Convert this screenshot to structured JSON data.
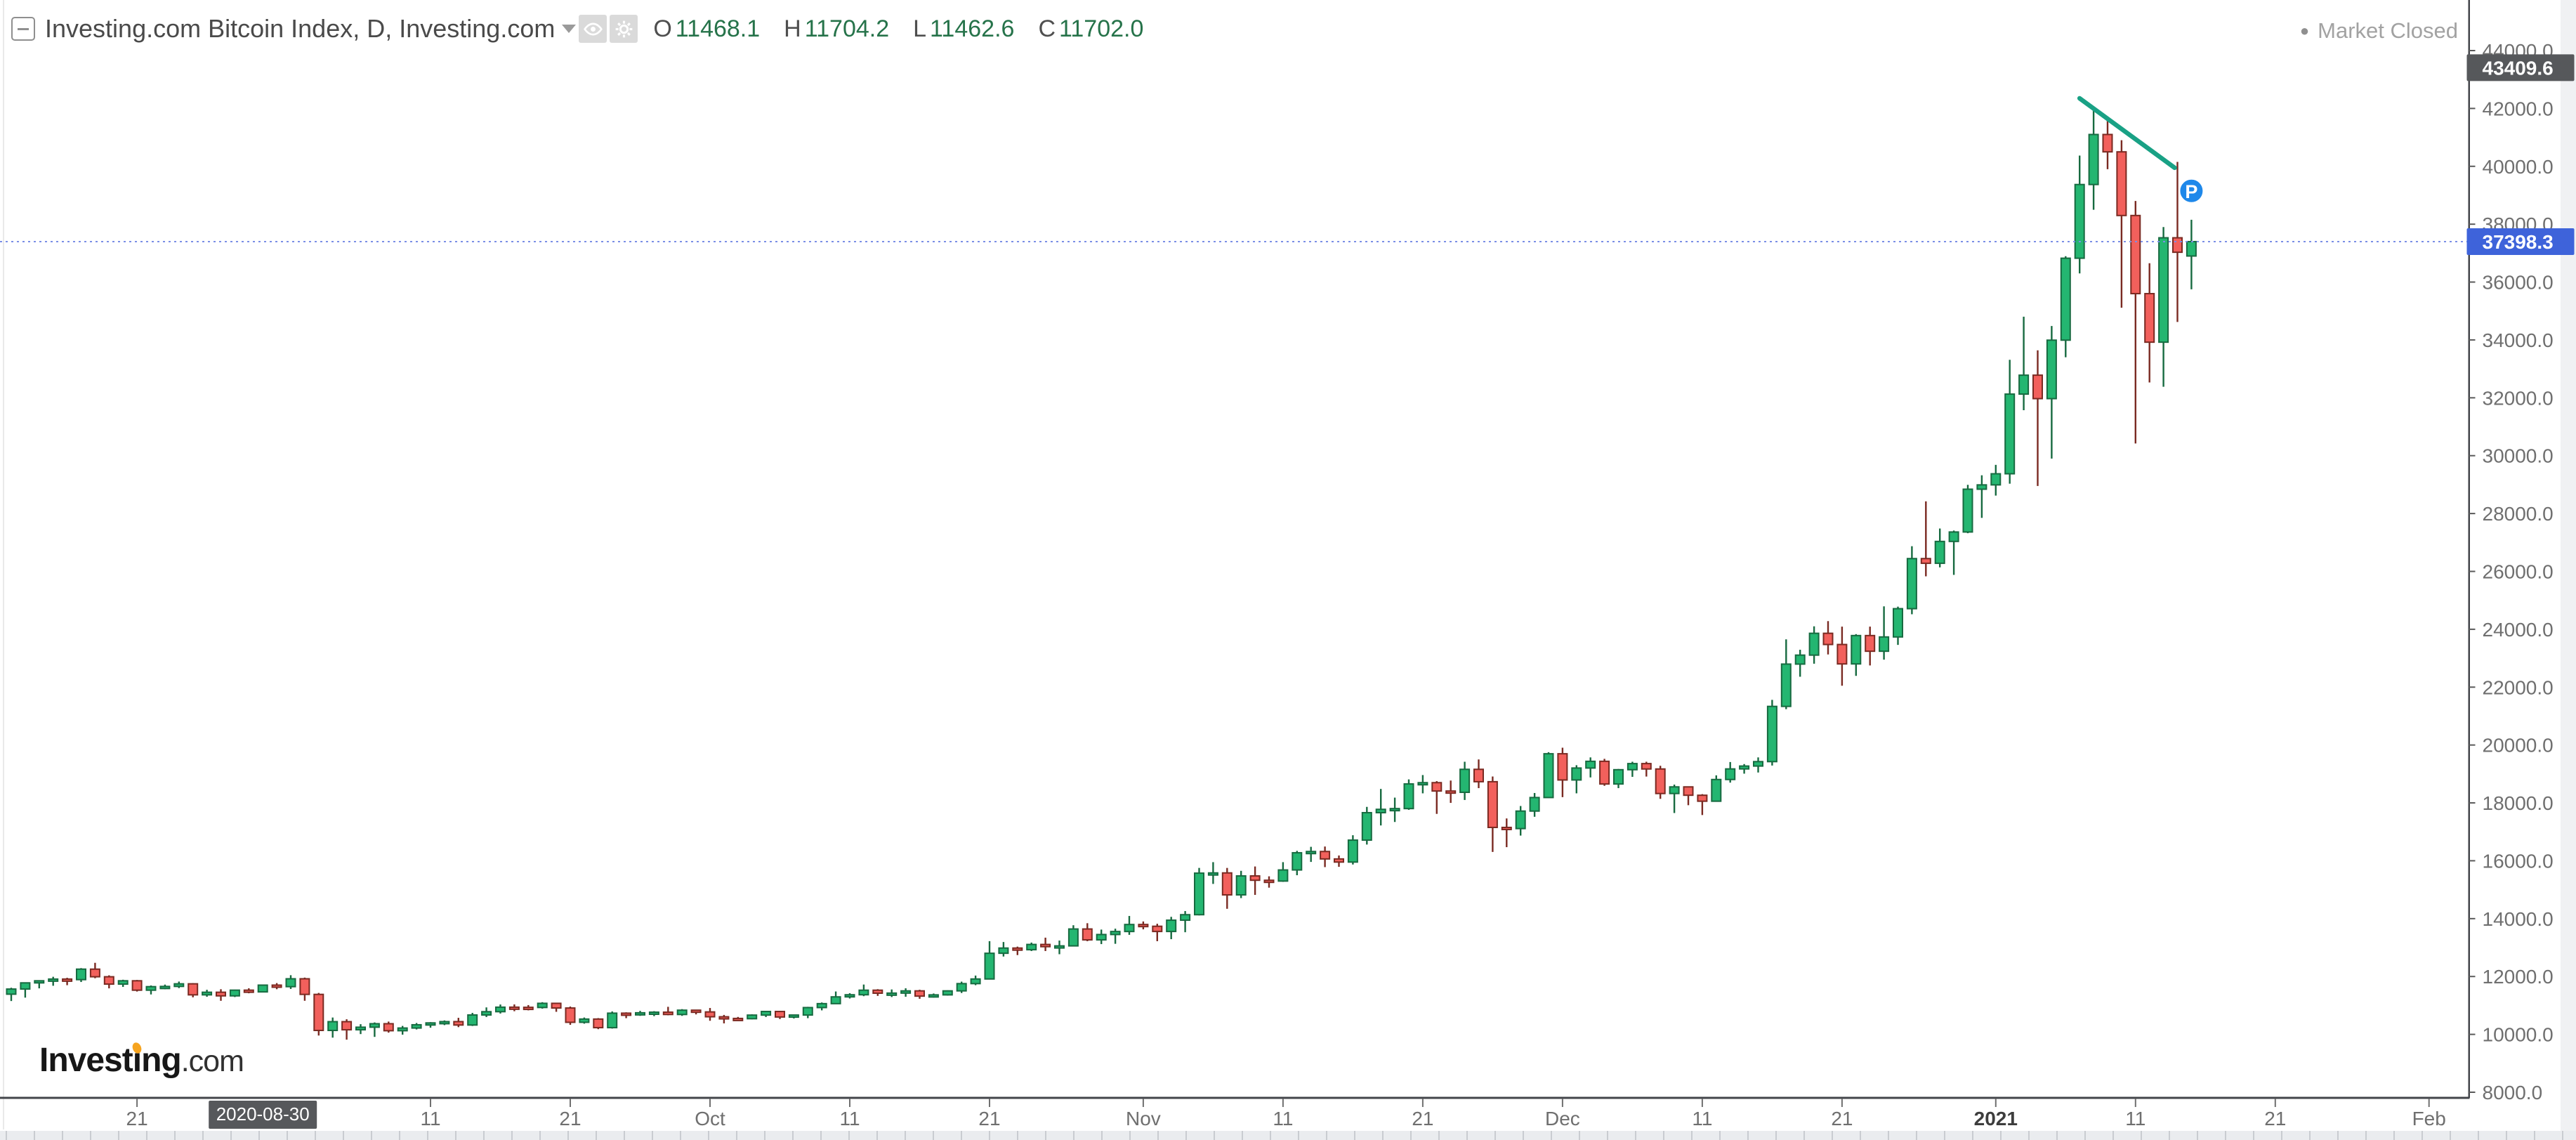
{
  "legend": {
    "title": "Investing.com Bitcoin Index, D, Investing.com",
    "ohlc": [
      {
        "label": "O",
        "value": "11468.1"
      },
      {
        "label": "H",
        "value": "11704.2"
      },
      {
        "label": "L",
        "value": "11462.6"
      },
      {
        "label": "C",
        "value": "11702.0"
      }
    ]
  },
  "status": {
    "dot": "●",
    "text": "Market Closed"
  },
  "watermark": {
    "part1": "Invest",
    "dotless_i": "ı",
    "part2": "ng",
    "suffix": ".com"
  },
  "price_axis": {
    "min": 8000,
    "max": 44000,
    "step": 2000,
    "decimals": 1,
    "label_color": "#6f6f6f",
    "high_badge": {
      "text": "43409.6",
      "value": 43409.6,
      "bg": "#56585b",
      "fg": "#ffffff"
    },
    "last_badge": {
      "text": "37398.3",
      "value": 37398.3,
      "bg": "#3e63da",
      "fg": "#ffffff"
    }
  },
  "time_axis": {
    "label_color": "#6f6f6f",
    "ticks": [
      {
        "label": "21",
        "day": 9
      },
      {
        "label": "11",
        "day": 30
      },
      {
        "label": "21",
        "day": 40
      },
      {
        "label": "Oct",
        "day": 50
      },
      {
        "label": "11",
        "day": 60
      },
      {
        "label": "21",
        "day": 70
      },
      {
        "label": "Nov",
        "day": 81
      },
      {
        "label": "11",
        "day": 91
      },
      {
        "label": "21",
        "day": 101
      },
      {
        "label": "Dec",
        "day": 111
      },
      {
        "label": "11",
        "day": 121
      },
      {
        "label": "21",
        "day": 131
      },
      {
        "label": "2021",
        "day": 142,
        "bold": true
      },
      {
        "label": "11",
        "day": 152
      },
      {
        "label": "21",
        "day": 162
      },
      {
        "label": "Feb",
        "day": 173
      }
    ],
    "crosshair_badge": {
      "text": "2020-08-30",
      "day": 18,
      "bg": "#56585b",
      "fg": "#ffffff"
    }
  },
  "chart_data": {
    "type": "candlestick",
    "title": "Investing.com Bitcoin Index",
    "interval": "D",
    "start_date": "2020-08-12",
    "ylim": [
      8000,
      44400
    ],
    "grid": false,
    "last_price": 37398.3,
    "colors": {
      "up": "#24b671",
      "up_border": "#176a40",
      "down": "#f2605c",
      "down_border": "#7a2a22",
      "trendline": "#19a185",
      "last_price_line": "#7b8fe6",
      "marker": "#1e88ea"
    },
    "trendline": {
      "from_day": 148,
      "from_price": 42350,
      "to_day": 154.8,
      "to_price": 39950
    },
    "marker": {
      "label": "P",
      "day": 156,
      "price": 39150
    },
    "candles": [
      [
        "2020-08-12",
        11389,
        11611,
        11152,
        11566
      ],
      [
        "2020-08-13",
        11566,
        11796,
        11270,
        11780
      ],
      [
        "2020-08-14",
        11780,
        11868,
        11590,
        11852
      ],
      [
        "2020-08-15",
        11852,
        11990,
        11680,
        11911
      ],
      [
        "2020-08-16",
        11911,
        11955,
        11700,
        11892
      ],
      [
        "2020-08-17",
        11892,
        12290,
        11810,
        12254
      ],
      [
        "2020-08-18",
        12254,
        12473,
        11940,
        11991
      ],
      [
        "2020-08-19",
        11991,
        12040,
        11590,
        11737
      ],
      [
        "2020-08-20",
        11737,
        11888,
        11640,
        11852
      ],
      [
        "2020-08-21",
        11852,
        11880,
        11480,
        11527
      ],
      [
        "2020-08-22",
        11527,
        11690,
        11380,
        11649
      ],
      [
        "2020-08-23",
        11649,
        11720,
        11560,
        11657
      ],
      [
        "2020-08-24",
        11657,
        11825,
        11600,
        11747
      ],
      [
        "2020-08-25",
        11747,
        11770,
        11280,
        11366
      ],
      [
        "2020-08-26",
        11366,
        11540,
        11300,
        11456
      ],
      [
        "2020-08-27",
        11456,
        11560,
        11160,
        11331
      ],
      [
        "2020-08-28",
        11331,
        11545,
        11290,
        11528
      ],
      [
        "2020-08-29",
        11528,
        11592,
        11420,
        11465
      ],
      [
        "2020-08-30",
        11468.1,
        11704.2,
        11462.6,
        11702.0
      ],
      [
        "2020-08-31",
        11702,
        11772,
        11560,
        11649
      ],
      [
        "2020-09-01",
        11649,
        12045,
        11570,
        11921
      ],
      [
        "2020-09-02",
        11921,
        11962,
        11161,
        11382
      ],
      [
        "2020-09-03",
        11382,
        11432,
        9960,
        10136
      ],
      [
        "2020-09-04",
        10136,
        10582,
        9887,
        10439
      ],
      [
        "2020-09-05",
        10439,
        10522,
        9817,
        10159
      ],
      [
        "2020-09-06",
        10159,
        10352,
        10010,
        10248
      ],
      [
        "2020-09-07",
        10248,
        10412,
        9913,
        10368
      ],
      [
        "2020-09-08",
        10368,
        10442,
        10060,
        10126
      ],
      [
        "2020-09-09",
        10126,
        10292,
        9990,
        10219
      ],
      [
        "2020-09-10",
        10219,
        10392,
        10170,
        10332
      ],
      [
        "2020-09-11",
        10332,
        10422,
        10230,
        10396
      ],
      [
        "2020-09-12",
        10396,
        10482,
        10320,
        10441
      ],
      [
        "2020-09-13",
        10441,
        10572,
        10250,
        10323
      ],
      [
        "2020-09-14",
        10323,
        10742,
        10290,
        10670
      ],
      [
        "2020-09-15",
        10670,
        10932,
        10600,
        10784
      ],
      [
        "2020-09-16",
        10784,
        11032,
        10720,
        10940
      ],
      [
        "2020-09-17",
        10940,
        11035,
        10800,
        10935
      ],
      [
        "2020-09-18",
        10935,
        11012,
        10830,
        10929
      ],
      [
        "2020-09-19",
        10929,
        11112,
        10890,
        11073
      ],
      [
        "2020-09-20",
        11073,
        11092,
        10780,
        10911
      ],
      [
        "2020-09-21",
        10911,
        10962,
        10330,
        10417
      ],
      [
        "2020-09-22",
        10417,
        10582,
        10370,
        10529
      ],
      [
        "2020-09-23",
        10529,
        10562,
        10180,
        10232
      ],
      [
        "2020-09-24",
        10232,
        10792,
        10200,
        10733
      ],
      [
        "2020-09-25",
        10733,
        10762,
        10560,
        10696
      ],
      [
        "2020-09-26",
        10696,
        10812,
        10640,
        10746
      ],
      [
        "2020-09-27",
        10746,
        10802,
        10630,
        10767
      ],
      [
        "2020-09-28",
        10767,
        10952,
        10660,
        10687
      ],
      [
        "2020-09-29",
        10687,
        10872,
        10640,
        10836
      ],
      [
        "2020-09-30",
        10836,
        10852,
        10690,
        10776
      ],
      [
        "2020-10-01",
        10776,
        10912,
        10470,
        10608
      ],
      [
        "2020-10-02",
        10608,
        10672,
        10380,
        10551
      ],
      [
        "2020-10-03",
        10551,
        10602,
        10490,
        10541
      ],
      [
        "2020-10-04",
        10541,
        10692,
        10520,
        10666
      ],
      [
        "2020-10-05",
        10666,
        10802,
        10600,
        10791
      ],
      [
        "2020-10-06",
        10791,
        10802,
        10530,
        10600
      ],
      [
        "2020-10-07",
        10600,
        10682,
        10550,
        10668
      ],
      [
        "2020-10-08",
        10668,
        10952,
        10560,
        10926
      ],
      [
        "2020-10-09",
        10926,
        11102,
        10830,
        11062
      ],
      [
        "2020-10-10",
        11062,
        11482,
        11050,
        11296
      ],
      [
        "2020-10-11",
        11296,
        11422,
        11240,
        11369
      ],
      [
        "2020-10-12",
        11369,
        11722,
        11320,
        11527
      ],
      [
        "2020-10-13",
        11527,
        11562,
        11330,
        11423
      ],
      [
        "2020-10-14",
        11423,
        11552,
        11290,
        11426
      ],
      [
        "2020-10-15",
        11426,
        11592,
        11300,
        11503
      ],
      [
        "2020-10-16",
        11503,
        11542,
        11230,
        11322
      ],
      [
        "2020-10-17",
        11322,
        11412,
        11270,
        11365
      ],
      [
        "2020-10-18",
        11365,
        11522,
        11340,
        11503
      ],
      [
        "2020-10-19",
        11503,
        11822,
        11430,
        11754
      ],
      [
        "2020-10-20",
        11754,
        12032,
        11700,
        11914
      ],
      [
        "2020-10-21",
        11914,
        13222,
        11900,
        12803
      ],
      [
        "2020-10-22",
        12803,
        13192,
        12690,
        12983
      ],
      [
        "2020-10-23",
        12983,
        13032,
        12740,
        12926
      ],
      [
        "2020-10-24",
        12926,
        13172,
        12880,
        13108
      ],
      [
        "2020-10-25",
        13108,
        13342,
        12880,
        13031
      ],
      [
        "2020-10-26",
        13031,
        13242,
        12770,
        13058
      ],
      [
        "2020-10-27",
        13058,
        13772,
        13050,
        13642
      ],
      [
        "2020-10-28",
        13642,
        13842,
        13220,
        13266
      ],
      [
        "2020-10-29",
        13266,
        13622,
        13120,
        13451
      ],
      [
        "2020-10-30",
        13451,
        13652,
        13130,
        13555
      ],
      [
        "2020-10-31",
        13555,
        14092,
        13440,
        13797
      ],
      [
        "2020-11-01",
        13797,
        13902,
        13630,
        13736
      ],
      [
        "2020-11-02",
        13736,
        13822,
        13220,
        13556
      ],
      [
        "2020-11-03",
        13556,
        14062,
        13290,
        13946
      ],
      [
        "2020-11-04",
        13946,
        14262,
        13530,
        14136
      ],
      [
        "2020-11-05",
        14136,
        15752,
        14110,
        15572
      ],
      [
        "2020-11-06",
        15572,
        15952,
        15200,
        15580
      ],
      [
        "2020-11-07",
        15580,
        15752,
        14340,
        14821
      ],
      [
        "2020-11-08",
        14821,
        15652,
        14710,
        15476
      ],
      [
        "2020-11-09",
        15476,
        15802,
        14820,
        15326
      ],
      [
        "2020-11-10",
        15326,
        15462,
        15070,
        15298
      ],
      [
        "2020-11-11",
        15298,
        15952,
        15270,
        15682
      ],
      [
        "2020-11-12",
        15682,
        16342,
        15500,
        16276
      ],
      [
        "2020-11-13",
        16276,
        16482,
        15960,
        16320
      ],
      [
        "2020-11-14",
        16320,
        16492,
        15780,
        16063
      ],
      [
        "2020-11-15",
        16063,
        16182,
        15790,
        15955
      ],
      [
        "2020-11-16",
        15955,
        16882,
        15870,
        16713
      ],
      [
        "2020-11-17",
        16713,
        17862,
        16560,
        17662
      ],
      [
        "2020-11-18",
        17662,
        18482,
        17220,
        17777
      ],
      [
        "2020-11-19",
        17777,
        18182,
        17340,
        17803
      ],
      [
        "2020-11-20",
        17803,
        18812,
        17760,
        18655
      ],
      [
        "2020-11-21",
        18655,
        18962,
        18330,
        18699
      ],
      [
        "2020-11-22",
        18699,
        18752,
        17620,
        18410
      ],
      [
        "2020-11-23",
        18410,
        18772,
        18000,
        18365
      ],
      [
        "2020-11-24",
        18365,
        19422,
        18100,
        19160
      ],
      [
        "2020-11-25",
        19160,
        19502,
        18510,
        18732
      ],
      [
        "2020-11-26",
        18732,
        18912,
        16306,
        17152
      ],
      [
        "2020-11-27",
        17152,
        17462,
        16470,
        17112
      ],
      [
        "2020-11-28",
        17112,
        17892,
        16870,
        17717
      ],
      [
        "2020-11-29",
        17717,
        18342,
        17520,
        18185
      ],
      [
        "2020-11-30",
        18185,
        19752,
        18180,
        19698
      ],
      [
        "2020-12-01",
        19698,
        19908,
        18200,
        18792
      ],
      [
        "2020-12-02",
        18792,
        19302,
        18330,
        19205
      ],
      [
        "2020-12-03",
        19205,
        19572,
        18880,
        19437
      ],
      [
        "2020-12-04",
        19437,
        19522,
        18590,
        18653
      ],
      [
        "2020-12-05",
        18653,
        19172,
        18510,
        19147
      ],
      [
        "2020-12-06",
        19147,
        19422,
        18900,
        19358
      ],
      [
        "2020-12-07",
        19358,
        19422,
        18910,
        19172
      ],
      [
        "2020-12-08",
        19172,
        19282,
        18140,
        18324
      ],
      [
        "2020-12-09",
        18324,
        18632,
        17650,
        18553
      ],
      [
        "2020-12-10",
        18553,
        18562,
        17920,
        18264
      ],
      [
        "2020-12-11",
        18264,
        18302,
        17580,
        18058
      ],
      [
        "2020-12-12",
        18058,
        18952,
        18050,
        18808
      ],
      [
        "2020-12-13",
        18808,
        19412,
        18700,
        19174
      ],
      [
        "2020-12-14",
        19174,
        19342,
        19010,
        19273
      ],
      [
        "2020-12-15",
        19273,
        19572,
        19050,
        19426
      ],
      [
        "2020-12-16",
        19426,
        21562,
        19290,
        21335
      ],
      [
        "2020-12-17",
        21335,
        23652,
        21240,
        22797
      ],
      [
        "2020-12-18",
        22797,
        23292,
        22360,
        23107
      ],
      [
        "2020-12-19",
        23107,
        24102,
        22810,
        23861
      ],
      [
        "2020-12-20",
        23861,
        24282,
        23130,
        23474
      ],
      [
        "2020-12-21",
        23474,
        24092,
        22050,
        22803
      ],
      [
        "2020-12-22",
        22803,
        23832,
        22390,
        23783
      ],
      [
        "2020-12-23",
        23783,
        24092,
        22750,
        23241
      ],
      [
        "2020-12-24",
        23241,
        24792,
        22950,
        23735
      ],
      [
        "2020-12-25",
        23735,
        24782,
        23460,
        24712
      ],
      [
        "2020-12-26",
        24712,
        26872,
        24520,
        26443
      ],
      [
        "2020-12-27",
        26443,
        28422,
        25830,
        26281
      ],
      [
        "2020-12-28",
        26281,
        27482,
        26140,
        27036
      ],
      [
        "2020-12-29",
        27036,
        27412,
        25880,
        27362
      ],
      [
        "2020-12-30",
        27362,
        28992,
        27320,
        28841
      ],
      [
        "2020-12-31",
        28841,
        29322,
        27850,
        28990
      ],
      [
        "2021-01-01",
        28990,
        29682,
        28620,
        29374
      ],
      [
        "2021-01-02",
        29374,
        33312,
        29030,
        32128
      ],
      [
        "2021-01-03",
        32128,
        34802,
        31570,
        32782
      ],
      [
        "2021-01-04",
        32782,
        33642,
        28952,
        31971
      ],
      [
        "2021-01-05",
        31971,
        34482,
        29900,
        33992
      ],
      [
        "2021-01-06",
        33992,
        36892,
        33400,
        36824
      ],
      [
        "2021-01-07",
        36824,
        40372,
        36300,
        39371
      ],
      [
        "2021-01-08",
        39371,
        42000,
        38500,
        41100
      ],
      [
        "2021-01-09",
        41100,
        41602,
        39900,
        40500
      ],
      [
        "2021-01-10",
        40500,
        40902,
        35111,
        38300
      ],
      [
        "2021-01-11",
        38300,
        38802,
        30420,
        35600
      ],
      [
        "2021-01-12",
        35600,
        36652,
        32530,
        33922
      ],
      [
        "2021-01-13",
        33922,
        37902,
        32380,
        37530
      ],
      [
        "2021-01-14",
        37530,
        40152,
        34620,
        37030
      ],
      [
        "2021-01-15",
        36900,
        38152,
        35750,
        37398.3
      ]
    ]
  }
}
